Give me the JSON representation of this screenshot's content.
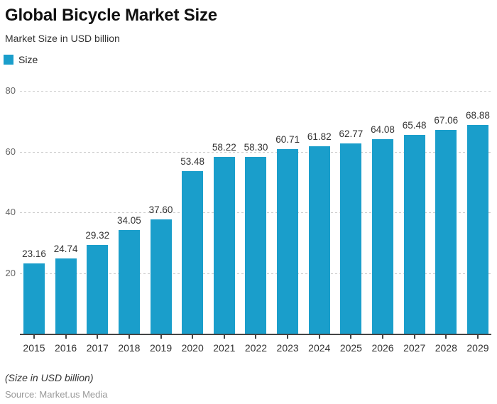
{
  "header": {
    "title": "Global Bicycle Market Size",
    "subtitle": "Market Size in USD billion"
  },
  "legend": {
    "label": "Size",
    "color": "#1a9ecb"
  },
  "chart_data": {
    "type": "bar",
    "title": "Global Bicycle Market Size",
    "subtitle": "Market Size in USD billion",
    "series_name": "Size",
    "categories": [
      "2015",
      "2016",
      "2017",
      "2018",
      "2019",
      "2020",
      "2021",
      "2022",
      "2023",
      "2024",
      "2025",
      "2026",
      "2027",
      "2028",
      "2029"
    ],
    "values": [
      23.16,
      24.74,
      29.32,
      34.05,
      37.6,
      53.48,
      58.22,
      58.3,
      60.71,
      61.82,
      62.77,
      64.08,
      65.48,
      67.06,
      68.88
    ],
    "value_label_format": "2-decimals",
    "xlabel": "",
    "ylabel": "",
    "ylim": [
      0,
      85
    ],
    "yticks": [
      20,
      40,
      60,
      80
    ],
    "grid": true,
    "grid_style": "dashed",
    "bar_color": "#1a9ecb",
    "legend_position": "top-left",
    "value_labels": true
  },
  "footer": {
    "note": "(Size in USD billion)",
    "source": "Source: Market.us Media"
  }
}
